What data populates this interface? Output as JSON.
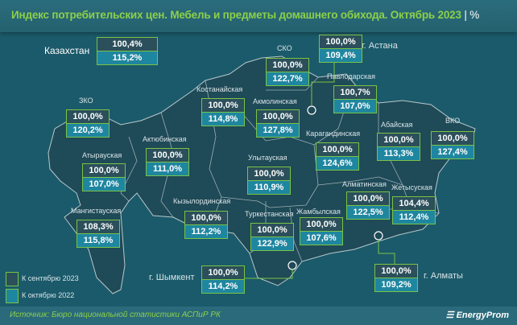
{
  "title": "Индекс потребительских цен. Мебель и предметы домашнего обихода. Октябрь 2023",
  "unit": "%",
  "colors": {
    "background": "#1b5a6a",
    "title": "#8cd04a",
    "border": "#78c445",
    "vs_prev_month": "#2b4f5b",
    "vs_prev_year": "#1f86a0"
  },
  "legend": {
    "prev_month": "К сентябрю 2023",
    "prev_year": "К октябрю 2022"
  },
  "regions": {
    "kz": {
      "name": "Казахстан",
      "m": "100,4%",
      "y": "115,2%"
    },
    "astana": {
      "name": "г. Астана",
      "m": "100,0%",
      "y": "109,4%"
    },
    "sko": {
      "name": "СКО",
      "m": "100,0%",
      "y": "122,7%"
    },
    "pavlodar": {
      "name": "Павлодарская",
      "m": "100,7%",
      "y": "107,0%"
    },
    "kostanay": {
      "name": "Костанайская",
      "m": "100,0%",
      "y": "114,8%"
    },
    "akmola": {
      "name": "Акмолинская",
      "m": "100,0%",
      "y": "127,8%"
    },
    "zko": {
      "name": "ЗКО",
      "m": "100,0%",
      "y": "120,2%"
    },
    "abai": {
      "name": "Абайская",
      "m": "100,0%",
      "y": "113,3%"
    },
    "vko": {
      "name": "ВКО",
      "m": "100,0%",
      "y": "127,4%"
    },
    "karaganda": {
      "name": "Карагандинская",
      "m": "100,0%",
      "y": "124,6%"
    },
    "aktobe": {
      "name": "Актюбинская",
      "m": "100,0%",
      "y": "111,0%"
    },
    "atyrau": {
      "name": "Атырауская",
      "m": "100,0%",
      "y": "107,0%"
    },
    "ulytau": {
      "name": "Улытауская",
      "m": "100,0%",
      "y": "110,9%"
    },
    "almaty_reg": {
      "name": "Алматинская",
      "m": "100,0%",
      "y": "122,5%"
    },
    "zhetysu": {
      "name": "Жетысуская",
      "m": "104,4%",
      "y": "112,4%"
    },
    "kyzylorda": {
      "name": "Кызылординская",
      "m": "100,0%",
      "y": "112,2%"
    },
    "mangystau": {
      "name": "Мангистауская",
      "m": "108,3%",
      "y": "115,8%"
    },
    "turkestan": {
      "name": "Туркестанская",
      "m": "100,0%",
      "y": "122,9%"
    },
    "zhambyl": {
      "name": "Жамбылская",
      "m": "100,0%",
      "y": "107,6%"
    },
    "shymkent": {
      "name": "г. Шымкент",
      "m": "100,0%",
      "y": "114,2%"
    },
    "almaty": {
      "name": "г. Алматы",
      "m": "100,0%",
      "y": "109,2%"
    }
  },
  "source": "Источник: Бюро национальной статистики АСПиР РК",
  "logo": "EnergyProm"
}
